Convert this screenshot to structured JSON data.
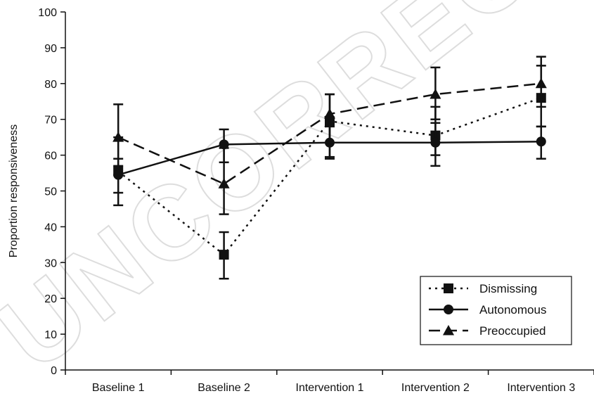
{
  "watermark": "UNCORRECTED",
  "chart_data": {
    "type": "line",
    "categories": [
      "Baseline 1",
      "Baseline 2",
      "Intervention 1",
      "Intervention 2",
      "Intervention 3"
    ],
    "ylabel": "Proportion responsiveness",
    "xlabel": "",
    "ylim": [
      0,
      100
    ],
    "yticks": [
      0,
      10,
      20,
      30,
      40,
      50,
      60,
      70,
      80,
      90,
      100
    ],
    "grid": false,
    "legend_position": "bottom-right",
    "series": [
      {
        "name": "Dismissing",
        "marker": "square",
        "line_style": "dotted",
        "color": "#111111",
        "values": [
          55.5,
          32.2,
          69.5,
          65.5,
          76.0
        ],
        "error": [
          [
            46.0,
            65.0
          ],
          [
            25.5,
            38.5
          ],
          [
            59.0,
            77.0
          ],
          [
            57.0,
            73.5
          ],
          [
            68.0,
            85.0
          ]
        ]
      },
      {
        "name": "Autonomous",
        "marker": "circle",
        "line_style": "solid",
        "color": "#111111",
        "values": [
          54.5,
          63.0,
          63.5,
          63.5,
          63.8
        ],
        "error": [
          [
            49.5,
            59.0
          ],
          [
            58.0,
            67.2
          ],
          [
            59.5,
            68.0
          ],
          [
            60.0,
            69.0
          ],
          [
            59.0,
            68.0
          ]
        ]
      },
      {
        "name": "Preoccupied",
        "marker": "triangle",
        "line_style": "dashed",
        "color": "#111111",
        "values": [
          65.0,
          52.0,
          71.5,
          77.0,
          80.0
        ],
        "error": [
          [
            57.0,
            74.2
          ],
          [
            43.5,
            62.0
          ],
          [
            63.5,
            77.0
          ],
          [
            70.0,
            84.5
          ],
          [
            73.5,
            87.5
          ]
        ]
      }
    ]
  }
}
